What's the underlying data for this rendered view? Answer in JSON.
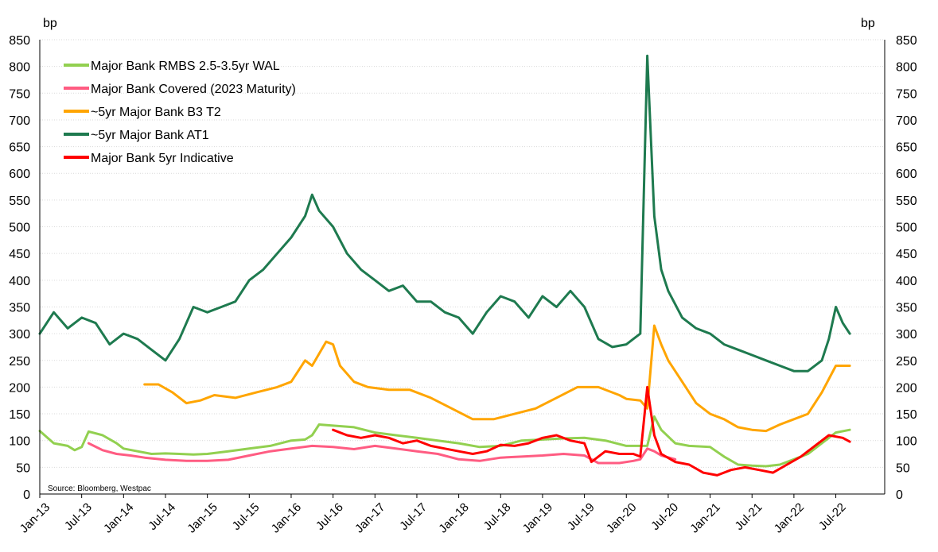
{
  "chart_data": {
    "type": "line",
    "ylabel_left": "bp",
    "ylabel_right": "bp",
    "ylim": [
      0,
      850
    ],
    "yticks": [
      0,
      50,
      100,
      150,
      200,
      250,
      300,
      350,
      400,
      450,
      500,
      550,
      600,
      650,
      700,
      750,
      800,
      850
    ],
    "xlim": [
      "2013-01-01",
      "2022-12-31"
    ],
    "xticks": [
      "Jan-13",
      "Jul-13",
      "Jan-14",
      "Jul-14",
      "Jan-15",
      "Jul-15",
      "Jan-16",
      "Jul-16",
      "Jan-17",
      "Jul-17",
      "Jan-18",
      "Jul-18",
      "Jan-19",
      "Jul-19",
      "Jan-20",
      "Jul-20",
      "Jan-21",
      "Jul-21",
      "Jan-22",
      "Jul-22"
    ],
    "grid": true,
    "legend_position": "top-left",
    "source": "Source: Bloomberg, Westpac",
    "series": [
      {
        "name": "Major Bank RMBS 2.5-3.5yr WAL",
        "color": "#92d050",
        "x": [
          "2013-01",
          "2013-03",
          "2013-05",
          "2013-06",
          "2013-07",
          "2013-08",
          "2013-10",
          "2013-12",
          "2014-01",
          "2014-03",
          "2014-05",
          "2014-07",
          "2014-09",
          "2014-11",
          "2015-01",
          "2015-04",
          "2015-07",
          "2015-10",
          "2016-01",
          "2016-03",
          "2016-04",
          "2016-05",
          "2016-07",
          "2016-10",
          "2017-01",
          "2017-04",
          "2017-07",
          "2017-10",
          "2018-01",
          "2018-04",
          "2018-07",
          "2018-10",
          "2019-01",
          "2019-04",
          "2019-07",
          "2019-10",
          "2020-01",
          "2020-03",
          "2020-04",
          "2020-05",
          "2020-06",
          "2020-08",
          "2020-10",
          "2021-01",
          "2021-03",
          "2021-05",
          "2021-07",
          "2021-09",
          "2021-11",
          "2022-01",
          "2022-03",
          "2022-05",
          "2022-07",
          "2022-09"
        ],
        "y": [
          118,
          95,
          90,
          82,
          88,
          117,
          110,
          95,
          85,
          80,
          75,
          76,
          75,
          74,
          75,
          80,
          85,
          90,
          100,
          102,
          110,
          130,
          128,
          125,
          115,
          110,
          105,
          100,
          95,
          88,
          90,
          100,
          102,
          104,
          105,
          100,
          90,
          90,
          90,
          145,
          120,
          95,
          90,
          88,
          70,
          55,
          53,
          52,
          55,
          65,
          75,
          95,
          115,
          120
        ]
      },
      {
        "name": "Major Bank Covered (2023 Maturity)",
        "color": "#ff5c82",
        "x": [
          "2013-08",
          "2013-10",
          "2013-12",
          "2014-02",
          "2014-04",
          "2014-07",
          "2014-10",
          "2015-01",
          "2015-04",
          "2015-07",
          "2015-10",
          "2016-01",
          "2016-04",
          "2016-07",
          "2016-10",
          "2017-01",
          "2017-04",
          "2017-07",
          "2017-10",
          "2018-01",
          "2018-04",
          "2018-07",
          "2018-10",
          "2019-01",
          "2019-04",
          "2019-07",
          "2019-09",
          "2019-12",
          "2020-02",
          "2020-03",
          "2020-04",
          "2020-05",
          "2020-06",
          "2020-08"
        ],
        "y": [
          95,
          82,
          75,
          72,
          68,
          64,
          62,
          62,
          64,
          72,
          80,
          85,
          90,
          88,
          84,
          90,
          85,
          80,
          75,
          65,
          62,
          68,
          70,
          72,
          75,
          72,
          58,
          58,
          62,
          65,
          85,
          80,
          72,
          65
        ]
      },
      {
        "name": "~5yr Major Bank B3 T2",
        "color": "#ffa500",
        "x": [
          "2014-04",
          "2014-06",
          "2014-08",
          "2014-10",
          "2014-12",
          "2015-02",
          "2015-05",
          "2015-08",
          "2015-11",
          "2016-01",
          "2016-03",
          "2016-04",
          "2016-06",
          "2016-07",
          "2016-08",
          "2016-10",
          "2016-12",
          "2017-03",
          "2017-06",
          "2017-09",
          "2017-12",
          "2018-03",
          "2018-06",
          "2018-09",
          "2018-12",
          "2019-03",
          "2019-06",
          "2019-09",
          "2019-12",
          "2020-01",
          "2020-03",
          "2020-04",
          "2020-05",
          "2020-06",
          "2020-07",
          "2020-09",
          "2020-11",
          "2021-01",
          "2021-03",
          "2021-05",
          "2021-07",
          "2021-09",
          "2021-11",
          "2022-01",
          "2022-03",
          "2022-05",
          "2022-07",
          "2022-09"
        ],
        "y": [
          205,
          205,
          190,
          170,
          175,
          185,
          180,
          190,
          200,
          210,
          250,
          240,
          285,
          280,
          240,
          210,
          200,
          195,
          195,
          180,
          160,
          140,
          140,
          150,
          160,
          180,
          200,
          200,
          185,
          178,
          175,
          160,
          315,
          280,
          250,
          210,
          170,
          150,
          140,
          125,
          120,
          118,
          130,
          140,
          150,
          190,
          240,
          240
        ]
      },
      {
        "name": "~5yr Major Bank AT1",
        "color": "#1e7a4f",
        "x": [
          "2013-01",
          "2013-03",
          "2013-05",
          "2013-07",
          "2013-09",
          "2013-11",
          "2014-01",
          "2014-03",
          "2014-05",
          "2014-07",
          "2014-09",
          "2014-11",
          "2015-01",
          "2015-03",
          "2015-05",
          "2015-07",
          "2015-09",
          "2015-11",
          "2016-01",
          "2016-03",
          "2016-04",
          "2016-05",
          "2016-07",
          "2016-09",
          "2016-11",
          "2017-01",
          "2017-03",
          "2017-05",
          "2017-07",
          "2017-09",
          "2017-11",
          "2018-01",
          "2018-03",
          "2018-05",
          "2018-07",
          "2018-09",
          "2018-11",
          "2019-01",
          "2019-03",
          "2019-05",
          "2019-07",
          "2019-09",
          "2019-11",
          "2020-01",
          "2020-02",
          "2020-03",
          "2020-04",
          "2020-05",
          "2020-06",
          "2020-07",
          "2020-09",
          "2020-11",
          "2021-01",
          "2021-03",
          "2021-05",
          "2021-07",
          "2021-09",
          "2021-11",
          "2022-01",
          "2022-03",
          "2022-05",
          "2022-06",
          "2022-07",
          "2022-08",
          "2022-09"
        ],
        "y": [
          300,
          340,
          310,
          330,
          320,
          280,
          300,
          290,
          270,
          250,
          290,
          350,
          340,
          350,
          360,
          400,
          420,
          450,
          480,
          520,
          560,
          530,
          500,
          450,
          420,
          400,
          380,
          390,
          360,
          360,
          340,
          330,
          300,
          340,
          370,
          360,
          330,
          370,
          350,
          380,
          350,
          290,
          275,
          280,
          290,
          300,
          820,
          520,
          420,
          380,
          330,
          310,
          300,
          280,
          270,
          260,
          250,
          240,
          230,
          230,
          250,
          290,
          350,
          320,
          300
        ]
      },
      {
        "name": "Major Bank 5yr Indicative",
        "color": "#ff0000",
        "x": [
          "2016-07",
          "2016-09",
          "2016-11",
          "2017-01",
          "2017-03",
          "2017-05",
          "2017-07",
          "2017-09",
          "2017-11",
          "2018-01",
          "2018-03",
          "2018-05",
          "2018-07",
          "2018-09",
          "2018-11",
          "2019-01",
          "2019-03",
          "2019-05",
          "2019-07",
          "2019-08",
          "2019-10",
          "2019-12",
          "2020-02",
          "2020-03",
          "2020-04",
          "2020-05",
          "2020-06",
          "2020-08",
          "2020-10",
          "2020-12",
          "2021-02",
          "2021-04",
          "2021-06",
          "2021-08",
          "2021-10",
          "2021-12",
          "2022-02",
          "2022-04",
          "2022-06",
          "2022-08",
          "2022-09"
        ],
        "y": [
          120,
          110,
          105,
          110,
          105,
          95,
          100,
          90,
          85,
          80,
          75,
          80,
          92,
          90,
          95,
          105,
          110,
          100,
          95,
          60,
          80,
          75,
          75,
          70,
          200,
          110,
          75,
          60,
          55,
          40,
          35,
          45,
          50,
          45,
          40,
          55,
          70,
          90,
          110,
          105,
          98
        ]
      }
    ]
  }
}
